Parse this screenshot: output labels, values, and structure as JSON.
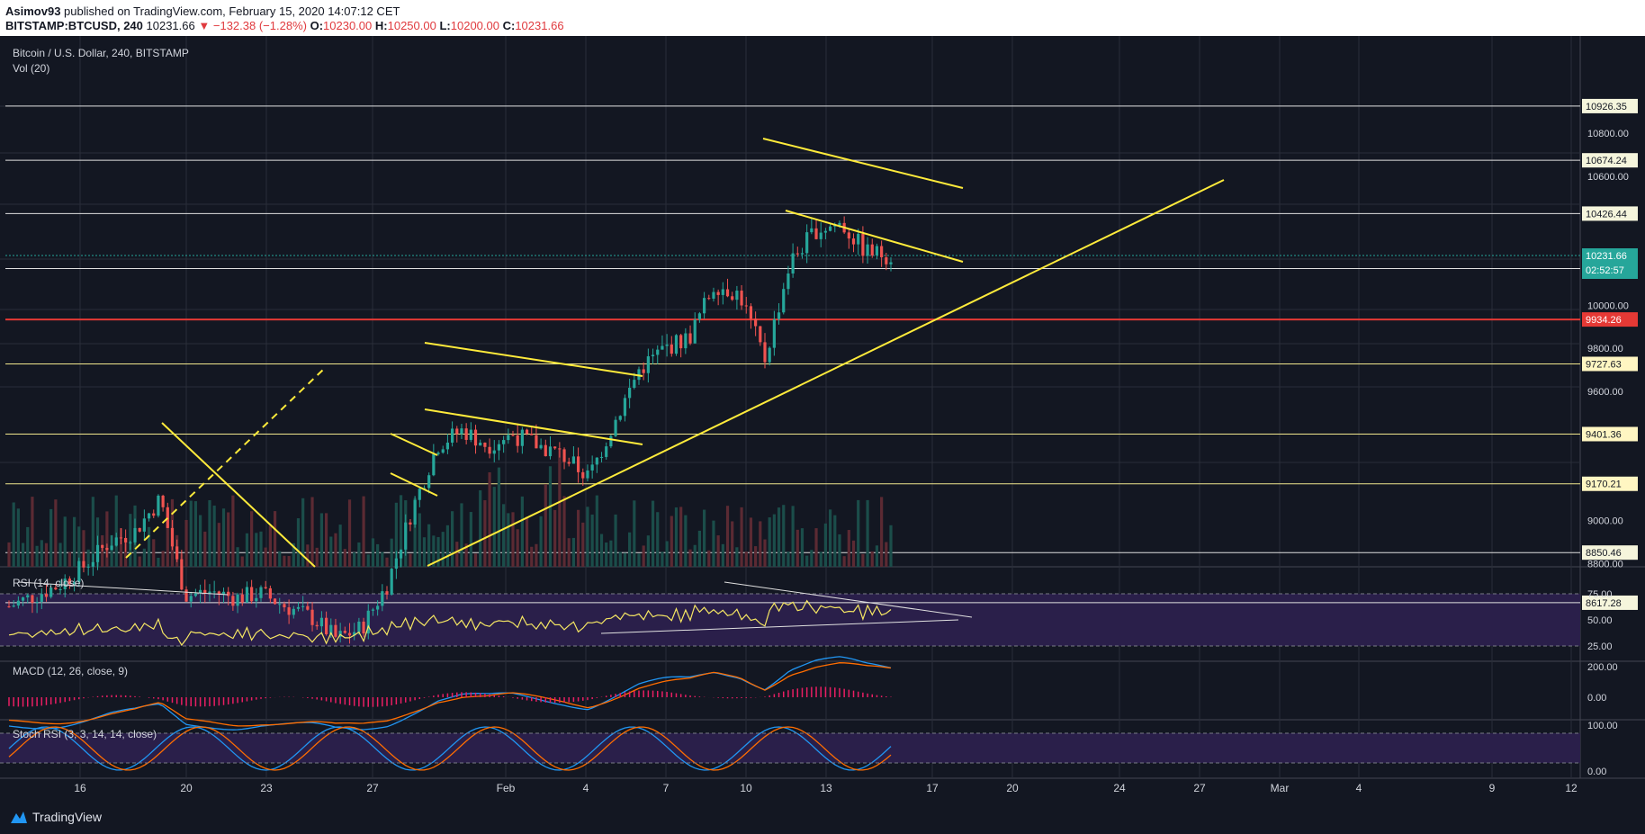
{
  "header": {
    "author": "Asimov93",
    "published_text": "published on TradingView.com, February 15, 2020 14:07:12 CET",
    "symbol": "BITSTAMP:BTCUSD, 240",
    "last": "10231.66",
    "change": "−132.38 (−1.28%)",
    "o_label": "O:",
    "o_value": "10230.00",
    "h_label": "H:",
    "h_value": "10250.00",
    "l_label": "L:",
    "l_value": "10200.00",
    "c_label": "C:",
    "c_value": "10231.66"
  },
  "legend": {
    "title": "Bitcoin / U.S. Dollar, 240, BITSTAMP",
    "vol": "Vol (20)",
    "rsi": "RSI (14, close)",
    "macd": "MACD (12, 26, close, 9)",
    "stoch": "Stoch RSI (3, 3, 14, 14, close)"
  },
  "footer": {
    "brand": "TradingView"
  },
  "colors": {
    "background": "#131722",
    "up": "#26a69a",
    "down": "#ef5350",
    "yellow": "#ffeb3b",
    "red_level": "#e53935",
    "rsi_band": "#2a1f4a",
    "macd": "#2196f3",
    "signal": "#ff6d00",
    "hist": "#e91e63"
  },
  "chart_data": {
    "type": "candlestick",
    "title": "Bitcoin / U.S. Dollar, 240, BITSTAMP",
    "x_tick_labels": [
      "16",
      "20",
      "23",
      "27",
      "Feb",
      "4",
      "7",
      "10",
      "13",
      "17",
      "20",
      "24",
      "27",
      "Mar",
      "4",
      "9",
      "12"
    ],
    "y_tick_labels": [
      "10800.00",
      "10600.00",
      "10000.00",
      "9800.00",
      "9600.00",
      "9000.00",
      "8800.00"
    ],
    "price_levels": [
      {
        "label": "10926.35",
        "value": 10926.35,
        "style": "white"
      },
      {
        "label": "10674.24",
        "value": 10674.24,
        "style": "white"
      },
      {
        "label": "10426.44",
        "value": 10426.44,
        "style": "white"
      },
      {
        "label": "10171.02",
        "value": 10171.02,
        "style": "white"
      },
      {
        "label": "9934.26",
        "value": 9934.26,
        "style": "red"
      },
      {
        "label": "9727.63",
        "value": 9727.63,
        "style": "yellow"
      },
      {
        "label": "9401.36",
        "value": 9401.36,
        "style": "yellow"
      },
      {
        "label": "9170.21",
        "value": 9170.21,
        "style": "yellow"
      },
      {
        "label": "8850.46",
        "value": 8850.46,
        "style": "white"
      },
      {
        "label": "8617.28",
        "value": 8617.28,
        "style": "white"
      }
    ],
    "current_price": {
      "label": "10231.66",
      "value": 10231.66,
      "countdown": "02:52:57"
    },
    "price_series": [
      {
        "date": "Jan 13",
        "price": 8600
      },
      {
        "date": "Jan 14",
        "price": 8650
      },
      {
        "date": "Jan 15",
        "price": 8700
      },
      {
        "date": "Jan 16",
        "price": 8790
      },
      {
        "date": "Jan 17",
        "price": 8900
      },
      {
        "date": "Jan 18",
        "price": 8950
      },
      {
        "date": "Jan 19",
        "price": 9100
      },
      {
        "date": "Jan 19b",
        "price": 8650
      },
      {
        "date": "Jan 20",
        "price": 8670
      },
      {
        "date": "Jan 21",
        "price": 8640
      },
      {
        "date": "Jan 22",
        "price": 8660
      },
      {
        "date": "Jan 23",
        "price": 8600
      },
      {
        "date": "Jan 24",
        "price": 8550
      },
      {
        "date": "Jan 25",
        "price": 8450
      },
      {
        "date": "Jan 26",
        "price": 8500
      },
      {
        "date": "Jan 27",
        "price": 8700
      },
      {
        "date": "Jan 28",
        "price": 9050
      },
      {
        "date": "Jan 29",
        "price": 9350
      },
      {
        "date": "Jan 30",
        "price": 9420
      },
      {
        "date": "Jan 31",
        "price": 9350
      },
      {
        "date": "Feb 1",
        "price": 9400
      },
      {
        "date": "Feb 2",
        "price": 9350
      },
      {
        "date": "Feb 3",
        "price": 9300
      },
      {
        "date": "Feb 4",
        "price": 9200
      },
      {
        "date": "Feb 5",
        "price": 9450
      },
      {
        "date": "Feb 6",
        "price": 9700
      },
      {
        "date": "Feb 7",
        "price": 9800
      },
      {
        "date": "Feb 8",
        "price": 9850
      },
      {
        "date": "Feb 9",
        "price": 10100
      },
      {
        "date": "Feb 10",
        "price": 10050
      },
      {
        "date": "Feb 10b",
        "price": 9750
      },
      {
        "date": "Feb 11",
        "price": 10200
      },
      {
        "date": "Feb 12",
        "price": 10350
      },
      {
        "date": "Feb 13",
        "price": 10380
      },
      {
        "date": "Feb 14",
        "price": 10250
      },
      {
        "date": "Feb 15",
        "price": 10231.66
      }
    ],
    "rsi_levels": [
      "75.00",
      "50.00",
      "25.00"
    ],
    "macd_levels": [
      "200.00",
      "0.00"
    ],
    "stoch_levels": [
      "100.00",
      "0.00"
    ]
  }
}
